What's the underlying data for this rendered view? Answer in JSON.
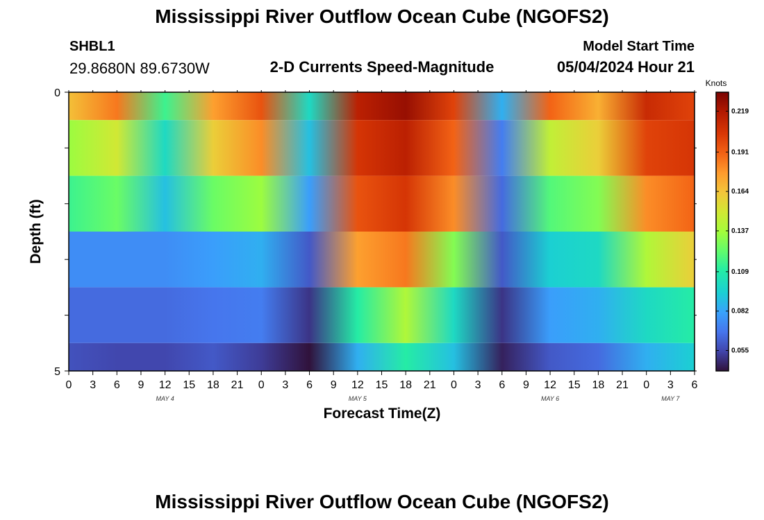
{
  "chart_data": {
    "type": "heatmap",
    "title": "Mississippi River Outflow Ocean Cube (NGOFS2)",
    "station_id": "SHBL1",
    "station_coords": "29.8680N  89.6730W",
    "subtitle": "2-D Currents Speed-Magnitude",
    "model_start_label": "Model Start Time",
    "model_start_value": "05/04/2024 Hour 21",
    "xlabel": "Forecast Time(Z)",
    "ylabel": "Depth (ft)",
    "y_ticks": [
      "0",
      "5"
    ],
    "ylim": [
      0,
      5
    ],
    "x_tick_labels": [
      "0",
      "3",
      "6",
      "9",
      "12",
      "15",
      "18",
      "21",
      "0",
      "3",
      "6",
      "9",
      "12",
      "15",
      "18",
      "21",
      "0",
      "3",
      "6",
      "9",
      "12",
      "15",
      "18",
      "21",
      "0",
      "3",
      "6"
    ],
    "date_labels": [
      {
        "label": "MAY 4",
        "tick_index": 4
      },
      {
        "label": "MAY 5",
        "tick_index": 12
      },
      {
        "label": "MAY 6",
        "tick_index": 20
      },
      {
        "label": "MAY 7",
        "tick_index": 25
      }
    ],
    "colorbar": {
      "title": "Knots",
      "vmin": 0.041,
      "vmax": 0.232,
      "ticks": [
        "0.219",
        "0.191",
        "0.164",
        "0.137",
        "0.109",
        "0.082",
        "0.055"
      ]
    },
    "depth_layers": [
      "0-0.5",
      "0.5-1.5",
      "1.5-2.5",
      "2.5-3.5",
      "3.5-4.5",
      "4.5-5"
    ],
    "time_hours": [
      0,
      6,
      12,
      18,
      24,
      30,
      36,
      42,
      48,
      54,
      60,
      66,
      72,
      78
    ],
    "speed_knots": [
      [
        0.165,
        0.185,
        0.115,
        0.175,
        0.195,
        0.1,
        0.215,
        0.225,
        0.2,
        0.085,
        0.19,
        0.17,
        0.21,
        0.2
      ],
      [
        0.135,
        0.15,
        0.1,
        0.16,
        0.18,
        0.09,
        0.205,
        0.215,
        0.19,
        0.07,
        0.145,
        0.16,
        0.2,
        0.205
      ],
      [
        0.115,
        0.125,
        0.09,
        0.125,
        0.135,
        0.08,
        0.195,
        0.205,
        0.18,
        0.065,
        0.12,
        0.13,
        0.18,
        0.19
      ],
      [
        0.075,
        0.075,
        0.075,
        0.08,
        0.085,
        0.06,
        0.175,
        0.185,
        0.13,
        0.06,
        0.095,
        0.1,
        0.14,
        0.16
      ],
      [
        0.065,
        0.065,
        0.065,
        0.068,
        0.07,
        0.05,
        0.11,
        0.14,
        0.1,
        0.05,
        0.08,
        0.085,
        0.1,
        0.11
      ],
      [
        0.058,
        0.055,
        0.055,
        0.06,
        0.052,
        0.041,
        0.085,
        0.11,
        0.09,
        0.045,
        0.06,
        0.065,
        0.085,
        0.095
      ]
    ]
  },
  "footer": {
    "repeat_title": "Mississippi River Outflow Ocean Cube (NGOFS2)"
  }
}
